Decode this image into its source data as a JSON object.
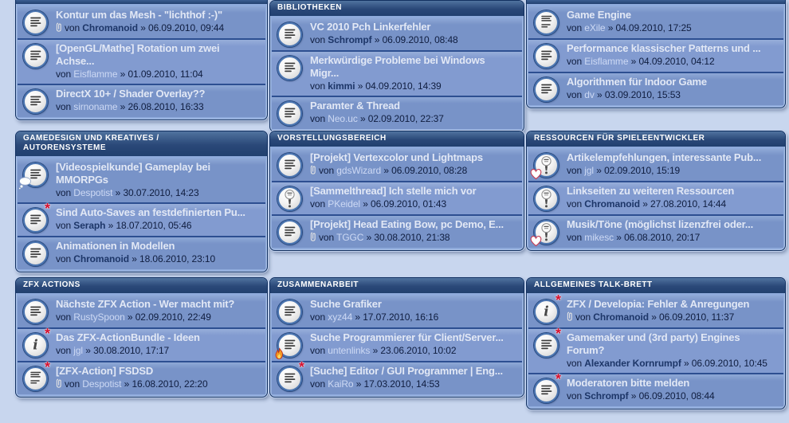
{
  "byline_prefix": "von",
  "byline_separator": "»",
  "colors": {
    "page_bg": "#c8d6ee",
    "panel_border": "#123060",
    "panel_inner": "#8fabdc",
    "header_top": "#50739f",
    "header_bottom": "#21406f",
    "row_odd": "#7893c8",
    "row_even": "#829bd0",
    "row_separator": "#2d4f91",
    "title": "#e2e8f5",
    "byline": "#0f1d3f",
    "author_link": "#cdd9f4",
    "author_bold": "#1d3668",
    "asterisk": "#d40f2e"
  },
  "panels": [
    {
      "name": "row1-col1",
      "header": null,
      "threads": [
        {
          "title": "Kontur um das Mesh - \"lichthof :-)\"",
          "attachment": true,
          "author": "Chromanoid",
          "author_bold": true,
          "date": "06.09.2010, 09:44",
          "icon": "doc",
          "badge": null
        },
        {
          "title": "[OpenGL/Mathe] Rotation um zwei\nAchse...",
          "attachment": false,
          "author": "Eisflamme",
          "author_bold": false,
          "date": "01.09.2010, 11:04",
          "icon": "doc",
          "badge": null
        },
        {
          "title": "DirectX 10+ / Shader Overlay??",
          "attachment": false,
          "author": "sirnoname",
          "author_bold": false,
          "date": "26.08.2010, 16:33",
          "icon": "doc",
          "badge": null
        }
      ]
    },
    {
      "name": "bibliotheken",
      "header": "BIBLIOTHEKEN",
      "threads": [
        {
          "title": "VC 2010 Pch Linkerfehler",
          "attachment": false,
          "author": "Schrompf",
          "author_bold": true,
          "date": "06.09.2010, 08:48",
          "icon": "doc",
          "badge": null
        },
        {
          "title": "Merkwürdige Probleme bei Windows\nMigr...",
          "attachment": false,
          "author": "kimmi",
          "author_bold": true,
          "date": "04.09.2010, 14:39",
          "icon": "doc",
          "badge": null
        },
        {
          "title": "Paramter & Thread",
          "attachment": false,
          "author": "Neo.uc",
          "author_bold": false,
          "date": "02.09.2010, 22:37",
          "icon": "doc",
          "badge": null
        }
      ]
    },
    {
      "name": "row1-col3",
      "header": null,
      "threads": [
        {
          "title": "Game Engine",
          "attachment": false,
          "author": "eXile",
          "author_bold": false,
          "date": "04.09.2010, 17:25",
          "icon": "doc-multi",
          "badge": null
        },
        {
          "title": "Performance klassischer Patterns und ...",
          "attachment": false,
          "author": "Eisflamme",
          "author_bold": false,
          "date": "04.09.2010, 04:12",
          "icon": "doc",
          "badge": null
        },
        {
          "title": "Algorithmen für Indoor Game",
          "attachment": false,
          "author": "dv",
          "author_bold": false,
          "date": "03.09.2010, 15:53",
          "icon": "doc",
          "badge": null
        }
      ]
    },
    {
      "name": "gamedesign",
      "header": "GAMEDESIGN UND KREATIVES /\nAUTORENSYSTEME",
      "threads": [
        {
          "title": "[Videospielkunde] Gameplay bei\nMMORPGs",
          "attachment": false,
          "author": "Despotist",
          "author_bold": false,
          "date": "30.07.2010, 14:23",
          "icon": "doc",
          "badge": "bubble"
        },
        {
          "title": "Sind Auto-Saves an festdefinierten Pu...",
          "attachment": false,
          "author": "Seraph",
          "author_bold": true,
          "date": "18.07.2010, 05:46",
          "icon": "doc",
          "badge": "asterisk"
        },
        {
          "title": "Animationen in Modellen",
          "attachment": false,
          "author": "Chromanoid",
          "author_bold": true,
          "date": "18.06.2010, 23:10",
          "icon": "doc",
          "badge": null
        }
      ]
    },
    {
      "name": "vorstellungsbereich",
      "header": "VORSTELLUNGSBEREICH",
      "threads": [
        {
          "title": "[Projekt] Vertexcolor und Lightmaps",
          "attachment": true,
          "author": "gdsWizard",
          "author_bold": false,
          "date": "06.09.2010, 08:28",
          "icon": "doc",
          "badge": null
        },
        {
          "title": "[Sammelthread] Ich stelle mich vor",
          "attachment": false,
          "author": "PKeidel",
          "author_bold": false,
          "date": "06.09.2010, 01:43",
          "icon": "announce",
          "badge": null
        },
        {
          "title": "[Projekt] Head Eating Bow, pc Demo, E...",
          "attachment": true,
          "author": "TGGC",
          "author_bold": false,
          "date": "30.08.2010, 21:38",
          "icon": "doc",
          "badge": null
        }
      ]
    },
    {
      "name": "ressourcen",
      "header": "RESSOURCEN FÜR SPIELEENTWICKLER",
      "threads": [
        {
          "title": "Artikelempfehlungen, interessante Pub...",
          "attachment": false,
          "author": "jgl",
          "author_bold": false,
          "date": "02.09.2010, 15:19",
          "icon": "announce",
          "badge": "heart"
        },
        {
          "title": "Linkseiten zu weiteren Ressourcen",
          "attachment": false,
          "author": "Chromanoid",
          "author_bold": true,
          "date": "27.08.2010, 14:44",
          "icon": "announce",
          "badge": null
        },
        {
          "title": "Musik/Töne (möglichst lizenzfrei oder...",
          "attachment": false,
          "author": "mikesc",
          "author_bold": false,
          "date": "06.08.2010, 20:17",
          "icon": "announce",
          "badge": "heart"
        }
      ]
    },
    {
      "name": "zfx-actions",
      "header": "ZFX ACTIONS",
      "threads": [
        {
          "title": "Nächste ZFX Action - Wer macht mit?",
          "attachment": false,
          "author": "RustySpoon",
          "author_bold": false,
          "date": "02.09.2010, 22:49",
          "icon": "doc",
          "badge": null
        },
        {
          "title": "Das ZFX-ActionBundle - Ideen",
          "attachment": false,
          "author": "jgl",
          "author_bold": false,
          "date": "30.08.2010, 17:17",
          "icon": "info",
          "badge": "asterisk"
        },
        {
          "title": "[ZFX-Action] FSDSD",
          "attachment": true,
          "author": "Despotist",
          "author_bold": false,
          "date": "16.08.2010, 22:20",
          "icon": "doc-multi",
          "badge": "asterisk"
        }
      ]
    },
    {
      "name": "zusammenarbeit",
      "header": "ZUSAMMENARBEIT",
      "threads": [
        {
          "title": "Suche Grafiker",
          "attachment": false,
          "author": "xyz44",
          "author_bold": false,
          "date": "17.07.2010, 16:16",
          "icon": "doc",
          "badge": null
        },
        {
          "title": "Suche Programmierer für Client/Server...",
          "attachment": false,
          "author": "untenlinks",
          "author_bold": false,
          "date": "23.06.2010, 10:02",
          "icon": "doc",
          "badge": "flame"
        },
        {
          "title": "[Suche] Editor / GUI Programmer | Eng...",
          "attachment": false,
          "author": "KaiRo",
          "author_bold": false,
          "date": "17.03.2010, 14:53",
          "icon": "doc",
          "badge": "asterisk"
        }
      ]
    },
    {
      "name": "allgemeines-talk-brett",
      "header": "ALLGEMEINES TALK-BRETT",
      "threads": [
        {
          "title": "ZFX / Developia: Fehler & Anregungen",
          "attachment": true,
          "author": "Chromanoid",
          "author_bold": true,
          "date": "06.09.2010, 11:37",
          "icon": "info",
          "badge": "asterisk"
        },
        {
          "title": "Gamemaker und (3rd party) Engines\nForum?",
          "attachment": false,
          "author": "Alexander Kornrumpf",
          "author_bold": true,
          "date": "06.09.2010, 10:45",
          "icon": "doc",
          "badge": "asterisk"
        },
        {
          "title": "Moderatoren bitte melden",
          "attachment": false,
          "author": "Schrompf",
          "author_bold": true,
          "date": "06.09.2010, 08:44",
          "icon": "doc",
          "badge": "asterisk"
        }
      ]
    }
  ]
}
